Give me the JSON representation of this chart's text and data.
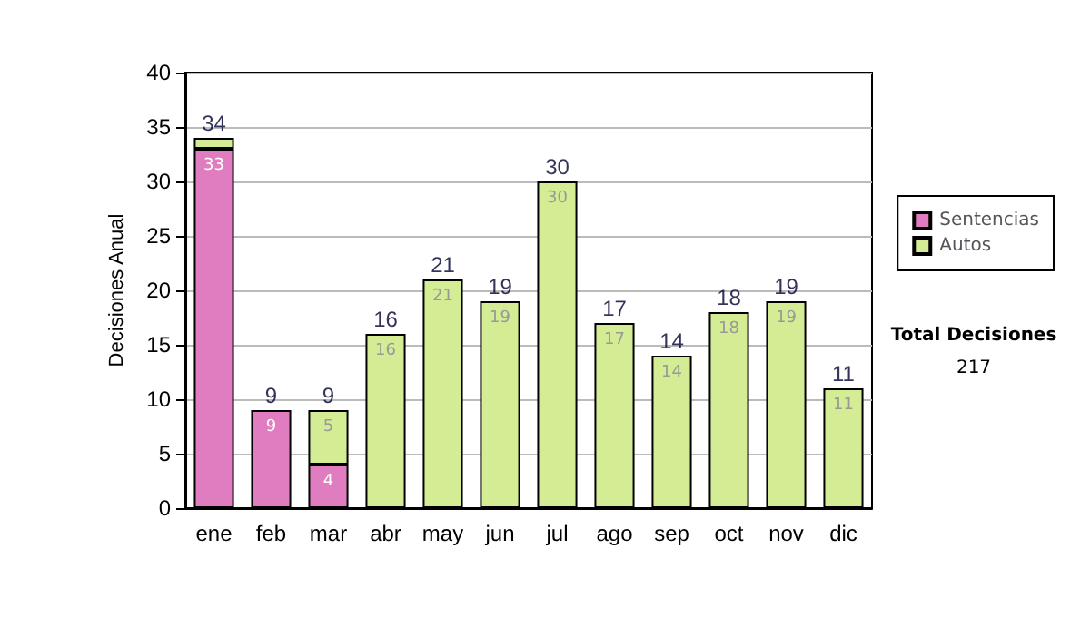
{
  "chart_data": {
    "type": "bar",
    "stacked": true,
    "ylabel": "Decisiones Anual",
    "categories": [
      "ene",
      "feb",
      "mar",
      "abr",
      "may",
      "jun",
      "jul",
      "ago",
      "sep",
      "oct",
      "nov",
      "dic"
    ],
    "series": [
      {
        "name": "Sentencias",
        "color": "#e07dc0",
        "values": [
          33,
          9,
          4,
          null,
          null,
          null,
          null,
          null,
          null,
          null,
          null,
          null
        ],
        "value_labels": [
          "33",
          "9",
          "4",
          null,
          null,
          null,
          null,
          null,
          null,
          null,
          null,
          null
        ]
      },
      {
        "name": "Autos",
        "color": "#d4ec94",
        "values": [
          1,
          null,
          5,
          16,
          21,
          19,
          30,
          17,
          14,
          18,
          19,
          11
        ],
        "value_labels": [
          null,
          null,
          "5",
          "16",
          "21",
          "19",
          "30",
          "17",
          "14",
          "18",
          "19",
          "11"
        ]
      }
    ],
    "totals": [
      "34",
      "9",
      "9",
      "16",
      "21",
      "19",
      "30",
      "17",
      "14",
      "18",
      "19",
      "11"
    ],
    "ylim": [
      0,
      40
    ],
    "yticks": [
      0,
      5,
      10,
      15,
      20,
      25,
      30,
      35,
      40
    ],
    "grid": "y",
    "legend": "right",
    "annotations": [
      "Total Decisiones",
      "217"
    ]
  }
}
